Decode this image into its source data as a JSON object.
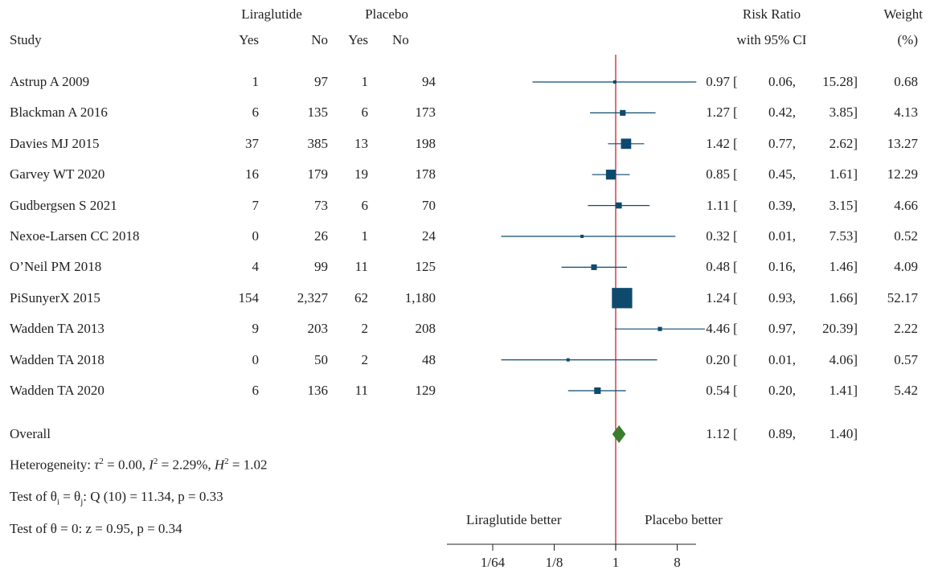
{
  "headers": {
    "study": "Study",
    "group1": "Liraglutide",
    "group2": "Placebo",
    "yes": "Yes",
    "no": "No",
    "rr_line1": "Risk Ratio",
    "rr_line2": "with 95% CI",
    "weight_line1": "Weight",
    "weight_line2": "(%)"
  },
  "rows": [
    {
      "study": "Astrup A 2009",
      "t_yes": "1",
      "t_no": "97",
      "p_yes": "1",
      "p_no": "94",
      "rr": "0.97",
      "lo": "0.06,",
      "hi": "15.28]",
      "weight": "0.68"
    },
    {
      "study": "Blackman A 2016",
      "t_yes": "6",
      "t_no": "135",
      "p_yes": "6",
      "p_no": "173",
      "rr": "1.27",
      "lo": "0.42,",
      "hi": "3.85]",
      "weight": "4.13"
    },
    {
      "study": "Davies MJ 2015",
      "t_yes": "37",
      "t_no": "385",
      "p_yes": "13",
      "p_no": "198",
      "rr": "1.42",
      "lo": "0.77,",
      "hi": "2.62]",
      "weight": "13.27"
    },
    {
      "study": "Garvey WT 2020",
      "t_yes": "16",
      "t_no": "179",
      "p_yes": "19",
      "p_no": "178",
      "rr": "0.85",
      "lo": "0.45,",
      "hi": "1.61]",
      "weight": "12.29"
    },
    {
      "study": "Gudbergsen S 2021",
      "t_yes": "7",
      "t_no": "73",
      "p_yes": "6",
      "p_no": "70",
      "rr": "1.11",
      "lo": "0.39,",
      "hi": "3.15]",
      "weight": "4.66"
    },
    {
      "study": "Nexoe-Larsen CC 2018",
      "t_yes": "0",
      "t_no": "26",
      "p_yes": "1",
      "p_no": "24",
      "rr": "0.32",
      "lo": "0.01,",
      "hi": "7.53]",
      "weight": "0.52"
    },
    {
      "study": "O’Neil PM 2018",
      "t_yes": "4",
      "t_no": "99",
      "p_yes": "11",
      "p_no": "125",
      "rr": "0.48",
      "lo": "0.16,",
      "hi": "1.46]",
      "weight": "4.09"
    },
    {
      "study": "PiSunyerX 2015",
      "t_yes": "154",
      "t_no": "2,327",
      "p_yes": "62",
      "p_no": "1,180",
      "rr": "1.24",
      "lo": "0.93,",
      "hi": "1.66]",
      "weight": "52.17"
    },
    {
      "study": "Wadden TA 2013",
      "t_yes": "9",
      "t_no": "203",
      "p_yes": "2",
      "p_no": "208",
      "rr": "4.46",
      "lo": "0.97,",
      "hi": "20.39]",
      "weight": "2.22"
    },
    {
      "study": "Wadden TA 2018",
      "t_yes": "0",
      "t_no": "50",
      "p_yes": "2",
      "p_no": "48",
      "rr": "0.20",
      "lo": "0.01,",
      "hi": "4.06]",
      "weight": "0.57"
    },
    {
      "study": "Wadden TA 2020",
      "t_yes": "6",
      "t_no": "136",
      "p_yes": "11",
      "p_no": "129",
      "rr": "0.54",
      "lo": "0.20,",
      "hi": "1.41]",
      "weight": "5.42"
    }
  ],
  "overall": {
    "label": "Overall",
    "rr": "1.12",
    "lo": "0.89,",
    "hi": "1.40]"
  },
  "bracket": "[",
  "stats": {
    "heterogeneity_prefix": "Heterogeneity: ",
    "tau_sym": "τ",
    "tau_val": " = 0.00, ",
    "i_sym": "I",
    "i_val": " = 2.29%, ",
    "h_sym": "H",
    "h_val": " = 1.02",
    "sq": "2",
    "test1_prefix": "Test of θ",
    "sub_i": "i",
    "eq": " = θ",
    "sub_j": "j",
    "test1_rest": ": Q (10) = 11.34, p = 0.33",
    "test2": "Test of θ = 0: z = 0.95, p = 0.34"
  },
  "favours": {
    "left": "Liraglutide better",
    "right": "Placebo better"
  },
  "chart_data": {
    "type": "forest",
    "x_scale": "log2",
    "xlim": [
      0.0208,
      20.39
    ],
    "null_line": 1,
    "ticks": [
      {
        "value": 0.015625,
        "label": "1/64"
      },
      {
        "value": 0.125,
        "label": "1/8"
      },
      {
        "value": 1,
        "label": "1"
      },
      {
        "value": 8,
        "label": "8"
      }
    ],
    "studies": [
      {
        "rr": 0.97,
        "lo": 0.06,
        "hi": 15.28,
        "weight": 0.68
      },
      {
        "rr": 1.27,
        "lo": 0.42,
        "hi": 3.85,
        "weight": 4.13
      },
      {
        "rr": 1.42,
        "lo": 0.77,
        "hi": 2.62,
        "weight": 13.27
      },
      {
        "rr": 0.85,
        "lo": 0.45,
        "hi": 1.61,
        "weight": 12.29
      },
      {
        "rr": 1.11,
        "lo": 0.39,
        "hi": 3.15,
        "weight": 4.66
      },
      {
        "rr": 0.32,
        "lo": 0.01,
        "hi": 7.53,
        "weight": 0.52
      },
      {
        "rr": 0.48,
        "lo": 0.16,
        "hi": 1.46,
        "weight": 4.09
      },
      {
        "rr": 1.24,
        "lo": 0.93,
        "hi": 1.66,
        "weight": 52.17
      },
      {
        "rr": 4.46,
        "lo": 0.97,
        "hi": 20.39,
        "weight": 2.22
      },
      {
        "rr": 0.2,
        "lo": 0.01,
        "hi": 4.06,
        "weight": 0.57
      },
      {
        "rr": 0.54,
        "lo": 0.2,
        "hi": 1.41,
        "weight": 5.42
      }
    ],
    "overall": {
      "rr": 1.12,
      "lo": 0.89,
      "hi": 1.4
    },
    "colors": {
      "marker": "#0e4a6e",
      "ci_line": "#0e4a6e",
      "null_line": "#cc2233",
      "diamond": "#3a7d2c",
      "axis": "#222222"
    }
  }
}
